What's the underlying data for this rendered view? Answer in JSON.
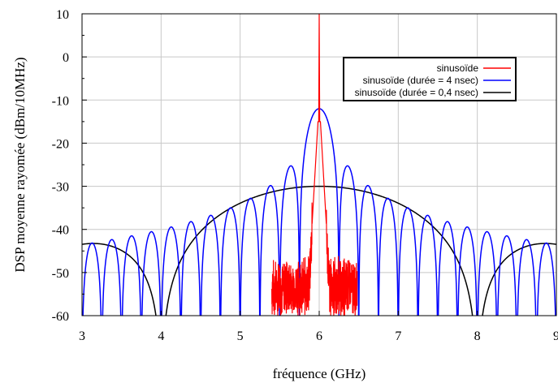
{
  "chart_data": {
    "type": "line",
    "title": "",
    "xlabel": "fréquence (GHz)",
    "ylabel": "DSP moyenne rayomée (dBm/10MHz)",
    "xlim": [
      3,
      9
    ],
    "ylim": [
      -60,
      10
    ],
    "x_ticks": [
      "3",
      "4",
      "5",
      "6",
      "7",
      "8",
      "9"
    ],
    "y_ticks": [
      "10",
      "0",
      "-10",
      "-20",
      "-30",
      "-40",
      "-50",
      "-60"
    ],
    "grid": true,
    "legend_position": "top-right",
    "series": [
      {
        "name": "sinusoïde",
        "color": "#ff0000",
        "shape": "narrow peak",
        "x": [
          5.45,
          5.55,
          5.65,
          5.75,
          5.82,
          5.88,
          5.92,
          5.95,
          5.97,
          5.985,
          6.0,
          6.015,
          6.03,
          6.05,
          6.08,
          6.12,
          6.18,
          6.25,
          6.35,
          6.45
        ],
        "y": [
          -60,
          -58,
          -55,
          -52,
          -49,
          -45,
          -40,
          -33,
          -25,
          -15,
          10,
          -15,
          -25,
          -33,
          -40,
          -45,
          -49,
          -53,
          -57,
          -60
        ]
      },
      {
        "name": "sinusoïde (durée = 4 nsec)",
        "color": "#0000ff",
        "shape": "sinc^2",
        "center": 6.0,
        "peak": -12,
        "null_spacing": 0.25,
        "x_peaks": [
          3.15,
          3.4,
          3.65,
          3.9,
          4.15,
          4.4,
          4.65,
          4.9,
          5.15,
          5.4,
          5.65,
          6.0,
          6.35,
          6.6,
          6.85,
          7.1,
          7.35,
          7.6,
          7.85,
          8.1,
          8.35,
          8.6,
          8.85
        ],
        "y_peaks": [
          -44.5,
          -43.5,
          -43,
          -42,
          -41,
          -38.5,
          -37,
          -34.5,
          -32,
          -29,
          -25,
          -12,
          -25,
          -29,
          -32,
          -34.5,
          -37,
          -38.5,
          -41,
          -42,
          -43,
          -43.5,
          -44.5
        ]
      },
      {
        "name": "sinusoïde (durée = 0,4 nsec)",
        "color": "#000000",
        "shape": "sinc^2",
        "center": 6.0,
        "peak": -30,
        "null_spacing": 2.0,
        "x_nulls": [
          4.0,
          8.0
        ],
        "x_sidelobe_peaks": [
          3.3,
          8.7
        ],
        "y_sidelobe_peaks": [
          -44.3,
          -44.3
        ]
      }
    ]
  }
}
